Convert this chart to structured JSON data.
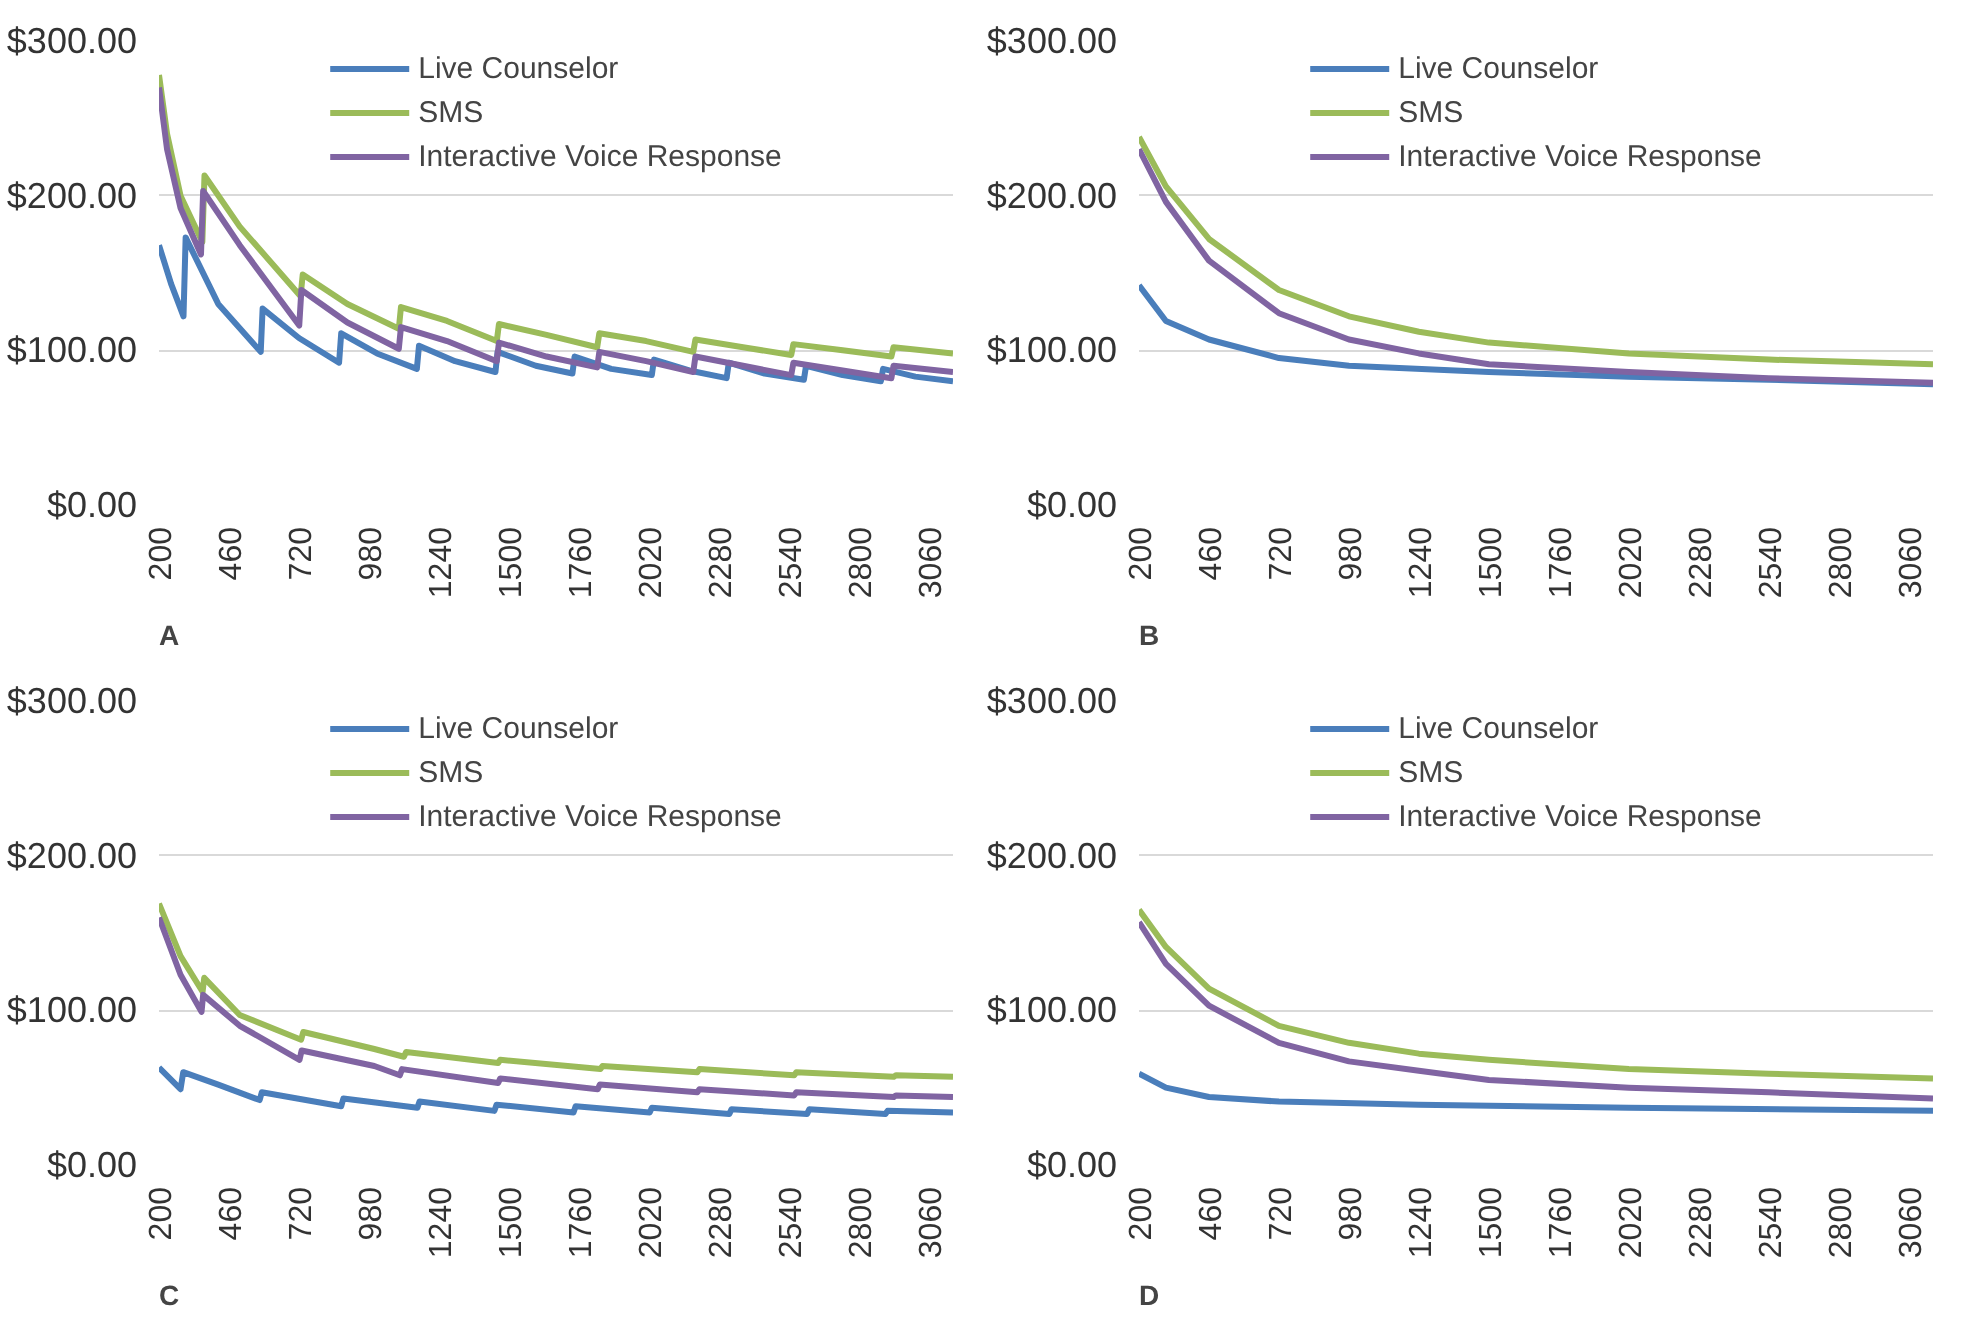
{
  "chart_data": [
    {
      "type": "line",
      "annotations": [
        "A"
      ],
      "xlim": [
        200,
        3150
      ],
      "xticks": [
        200,
        460,
        720,
        980,
        1240,
        1500,
        1760,
        2020,
        2280,
        2540,
        2800,
        3060
      ],
      "ylim": [
        0,
        300
      ],
      "yticks": [
        {
          "value": 0,
          "label": "$0.00"
        },
        {
          "value": 100,
          "label": "$100.00"
        },
        {
          "value": 200,
          "label": "$200.00"
        },
        {
          "value": 300,
          "label": "$300.00"
        }
      ],
      "grid": "y",
      "legend": "top",
      "series": [
        {
          "name": "Live Counselor",
          "color": "#4a7ebb",
          "x": [
            200,
            245,
            291,
            299,
            420,
            578,
            585,
            720,
            869,
            877,
            1010,
            1158,
            1166,
            1300,
            1450,
            1458,
            1600,
            1736,
            1744,
            1880,
            2031,
            2039,
            2170,
            2309,
            2317,
            2450,
            2596,
            2604,
            2740,
            2882,
            2890,
            3010,
            3150
          ],
          "values": [
            168,
            143,
            122,
            173,
            130,
            99,
            127,
            108,
            92,
            111,
            98,
            88,
            103,
            93,
            86,
            99,
            90,
            85,
            96,
            88,
            84,
            94,
            87,
            82,
            92,
            85,
            81,
            90,
            84,
            80,
            88,
            83,
            80
          ]
        },
        {
          "name": "SMS",
          "color": "#9bbb59",
          "x": [
            200,
            230,
            280,
            361,
            369,
            500,
            726,
            734,
            900,
            1091,
            1099,
            1270,
            1455,
            1463,
            1640,
            1828,
            1836,
            2010,
            2185,
            2193,
            2370,
            2549,
            2557,
            2740,
            2921,
            2929,
            3150
          ],
          "values": [
            278,
            240,
            200,
            170,
            213,
            180,
            135,
            149,
            130,
            114,
            128,
            119,
            106,
            117,
            110,
            102,
            111,
            106,
            99,
            107,
            102,
            97,
            104,
            100,
            96,
            102,
            98
          ]
        },
        {
          "name": "Interactive Voice Response",
          "color": "#8064a2",
          "x": [
            200,
            230,
            280,
            356,
            364,
            500,
            721,
            729,
            900,
            1091,
            1099,
            1270,
            1455,
            1463,
            1640,
            1828,
            1836,
            2010,
            2185,
            2193,
            2370,
            2549,
            2557,
            2740,
            2921,
            2929,
            3150
          ],
          "values": [
            270,
            230,
            192,
            162,
            203,
            168,
            116,
            139,
            118,
            101,
            115,
            106,
            93,
            105,
            96,
            89,
            99,
            93,
            86,
            96,
            90,
            84,
            92,
            87,
            82,
            90,
            86
          ]
        }
      ]
    },
    {
      "type": "line",
      "annotations": [
        "B"
      ],
      "xlim": [
        200,
        3150
      ],
      "xticks": [
        200,
        460,
        720,
        980,
        1240,
        1500,
        1760,
        2020,
        2280,
        2540,
        2800,
        3060
      ],
      "ylim": [
        0,
        300
      ],
      "yticks": [
        {
          "value": 0,
          "label": "$0.00"
        },
        {
          "value": 100,
          "label": "$100.00"
        },
        {
          "value": 200,
          "label": "$200.00"
        },
        {
          "value": 300,
          "label": "$300.00"
        }
      ],
      "grid": "y",
      "legend": "top",
      "series": [
        {
          "name": "Live Counselor",
          "color": "#4a7ebb",
          "x": [
            200,
            300,
            460,
            720,
            980,
            1500,
            2020,
            2540,
            3150
          ],
          "values": [
            142,
            119,
            107,
            95,
            90,
            86,
            83,
            81,
            78
          ]
        },
        {
          "name": "SMS",
          "color": "#9bbb59",
          "x": [
            200,
            300,
            460,
            720,
            980,
            1240,
            1500,
            2020,
            2540,
            3150
          ],
          "values": [
            238,
            206,
            172,
            139,
            122,
            112,
            105,
            98,
            94,
            91
          ]
        },
        {
          "name": "Interactive Voice Response",
          "color": "#8064a2",
          "x": [
            200,
            300,
            460,
            720,
            980,
            1240,
            1500,
            2020,
            2540,
            3150
          ],
          "values": [
            230,
            196,
            158,
            124,
            107,
            98,
            91,
            86,
            82,
            79
          ]
        }
      ]
    },
    {
      "type": "line",
      "annotations": [
        "C"
      ],
      "xlim": [
        200,
        3150
      ],
      "xticks": [
        200,
        460,
        720,
        980,
        1240,
        1500,
        1760,
        2020,
        2280,
        2540,
        2800,
        3060
      ],
      "ylim": [
        0,
        300
      ],
      "yticks": [
        {
          "value": 0,
          "label": "$0.00"
        },
        {
          "value": 100,
          "label": "$100.00"
        },
        {
          "value": 200,
          "label": "$200.00"
        },
        {
          "value": 300,
          "label": "$300.00"
        }
      ],
      "grid": "y",
      "legend": "top",
      "series": [
        {
          "name": "Live Counselor",
          "color": "#4a7ebb",
          "x": [
            200,
            280,
            290,
            420,
            574,
            582,
            877,
            885,
            1160,
            1168,
            1446,
            1454,
            1740,
            1748,
            2023,
            2031,
            2319,
            2327,
            2608,
            2616,
            2899,
            2907,
            3150
          ],
          "values": [
            63,
            49,
            60,
            52,
            42,
            47,
            38,
            43,
            37,
            41,
            35,
            39,
            34,
            38,
            34,
            37,
            33,
            36,
            33,
            36,
            33,
            35,
            34
          ]
        },
        {
          "name": "SMS",
          "color": "#9bbb59",
          "x": [
            200,
            280,
            362,
            368,
            500,
            728,
            736,
            1000,
            1110,
            1118,
            1460,
            1468,
            1840,
            1848,
            2200,
            2208,
            2560,
            2568,
            2930,
            2938,
            3150
          ],
          "values": [
            169,
            135,
            112,
            121,
            97,
            81,
            86,
            75,
            70,
            73,
            66,
            68,
            62,
            64,
            60,
            62,
            58,
            60,
            57,
            58,
            57
          ]
        },
        {
          "name": "Interactive Voice Response",
          "color": "#8064a2",
          "x": [
            200,
            280,
            358,
            364,
            500,
            722,
            730,
            1000,
            1095,
            1103,
            1460,
            1468,
            1830,
            1838,
            2200,
            2208,
            2560,
            2568,
            2930,
            2938,
            3150
          ],
          "values": [
            160,
            123,
            99,
            110,
            90,
            68,
            74,
            64,
            58,
            62,
            53,
            56,
            49,
            52,
            47,
            49,
            45,
            47,
            44,
            45,
            44
          ]
        }
      ]
    },
    {
      "type": "line",
      "annotations": [
        "D"
      ],
      "xlim": [
        200,
        3150
      ],
      "xticks": [
        200,
        460,
        720,
        980,
        1240,
        1500,
        1760,
        2020,
        2280,
        2540,
        2800,
        3060
      ],
      "ylim": [
        0,
        300
      ],
      "yticks": [
        {
          "value": 0,
          "label": "$0.00"
        },
        {
          "value": 100,
          "label": "$100.00"
        },
        {
          "value": 200,
          "label": "$200.00"
        },
        {
          "value": 300,
          "label": "$300.00"
        }
      ],
      "grid": "y",
      "legend": "top",
      "series": [
        {
          "name": "Live Counselor",
          "color": "#4a7ebb",
          "x": [
            200,
            300,
            460,
            720,
            1240,
            2020,
            3150
          ],
          "values": [
            59,
            50,
            44,
            41,
            39,
            37,
            35
          ]
        },
        {
          "name": "SMS",
          "color": "#9bbb59",
          "x": [
            200,
            300,
            460,
            720,
            980,
            1240,
            1500,
            2020,
            2540,
            3150
          ],
          "values": [
            165,
            141,
            114,
            90,
            79,
            72,
            68,
            62,
            59,
            56
          ]
        },
        {
          "name": "Interactive Voice Response",
          "color": "#8064a2",
          "x": [
            200,
            300,
            460,
            720,
            980,
            1240,
            1500,
            2020,
            2540,
            3150
          ],
          "values": [
            157,
            130,
            103,
            79,
            67,
            61,
            55,
            50,
            47,
            43
          ]
        }
      ]
    }
  ]
}
